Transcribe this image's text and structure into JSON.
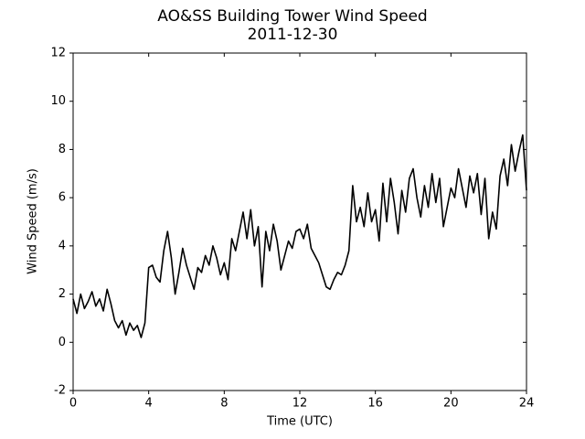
{
  "chart_data": {
    "type": "line",
    "title": "AO&SS Building Tower Wind Speed",
    "subtitle": "2011-12-30",
    "xlabel": "Time (UTC)",
    "ylabel": "Wind Speed (m/s)",
    "xlim": [
      0,
      24
    ],
    "xticks": [
      0,
      4,
      8,
      12,
      16,
      20,
      24
    ],
    "ylim": [
      -2,
      12
    ],
    "yticks": [
      -2,
      0,
      2,
      4,
      6,
      8,
      10,
      12
    ],
    "x": [
      0,
      0.2,
      0.4,
      0.6,
      0.8,
      1,
      1.2,
      1.4,
      1.6,
      1.8,
      2,
      2.2,
      2.4,
      2.6,
      2.8,
      3,
      3.2,
      3.4,
      3.6,
      3.8,
      4,
      4.2,
      4.4,
      4.6,
      4.8,
      5,
      5.2,
      5.4,
      5.6,
      5.8,
      6,
      6.2,
      6.4,
      6.6,
      6.8,
      7,
      7.2,
      7.4,
      7.6,
      7.8,
      8,
      8.2,
      8.4,
      8.6,
      8.8,
      9,
      9.2,
      9.4,
      9.6,
      9.8,
      10,
      10.2,
      10.4,
      10.6,
      10.8,
      11,
      11.2,
      11.4,
      11.6,
      11.8,
      12,
      12.2,
      12.4,
      12.6,
      12.8,
      13,
      13.2,
      13.4,
      13.6,
      13.8,
      14,
      14.2,
      14.4,
      14.6,
      14.8,
      15,
      15.2,
      15.4,
      15.6,
      15.8,
      16,
      16.2,
      16.4,
      16.6,
      16.8,
      17,
      17.2,
      17.4,
      17.6,
      17.8,
      18,
      18.2,
      18.4,
      18.6,
      18.8,
      19,
      19.2,
      19.4,
      19.6,
      19.8,
      20,
      20.2,
      20.4,
      20.6,
      20.8,
      21,
      21.2,
      21.4,
      21.6,
      21.8,
      22,
      22.2,
      22.4,
      22.6,
      22.8,
      23,
      23.2,
      23.4,
      23.6,
      23.8,
      24
    ],
    "series": [
      {
        "name": "Wind Speed",
        "color": "#000000",
        "values": [
          1.8,
          1.2,
          2.0,
          1.4,
          1.7,
          2.1,
          1.5,
          1.8,
          1.3,
          2.2,
          1.6,
          0.9,
          0.6,
          0.9,
          0.3,
          0.8,
          0.5,
          0.7,
          0.2,
          0.8,
          3.1,
          3.2,
          2.7,
          2.5,
          3.8,
          4.6,
          3.5,
          2.0,
          2.9,
          3.9,
          3.2,
          2.7,
          2.2,
          3.1,
          2.9,
          3.6,
          3.2,
          4.0,
          3.5,
          2.8,
          3.3,
          2.6,
          4.3,
          3.8,
          4.6,
          5.4,
          4.3,
          5.5,
          4.0,
          4.8,
          2.3,
          4.6,
          3.8,
          4.9,
          4.2,
          3.0,
          3.6,
          4.2,
          3.9,
          4.6,
          4.7,
          4.3,
          4.9,
          3.9,
          3.6,
          3.3,
          2.8,
          2.3,
          2.2,
          2.6,
          2.9,
          2.8,
          3.2,
          3.8,
          6.5,
          5.0,
          5.6,
          4.8,
          6.2,
          5.0,
          5.5,
          4.2,
          6.6,
          5.0,
          6.8,
          5.8,
          4.5,
          6.3,
          5.4,
          6.8,
          7.2,
          6.0,
          5.2,
          6.5,
          5.6,
          7.0,
          5.8,
          6.8,
          4.8,
          5.6,
          6.4,
          6.0,
          7.2,
          6.4,
          5.6,
          6.9,
          6.2,
          7.0,
          5.3,
          6.8,
          4.3,
          5.4,
          4.7,
          6.9,
          7.6,
          6.5,
          8.2,
          7.1,
          7.9,
          8.6,
          6.3
        ]
      }
    ]
  }
}
